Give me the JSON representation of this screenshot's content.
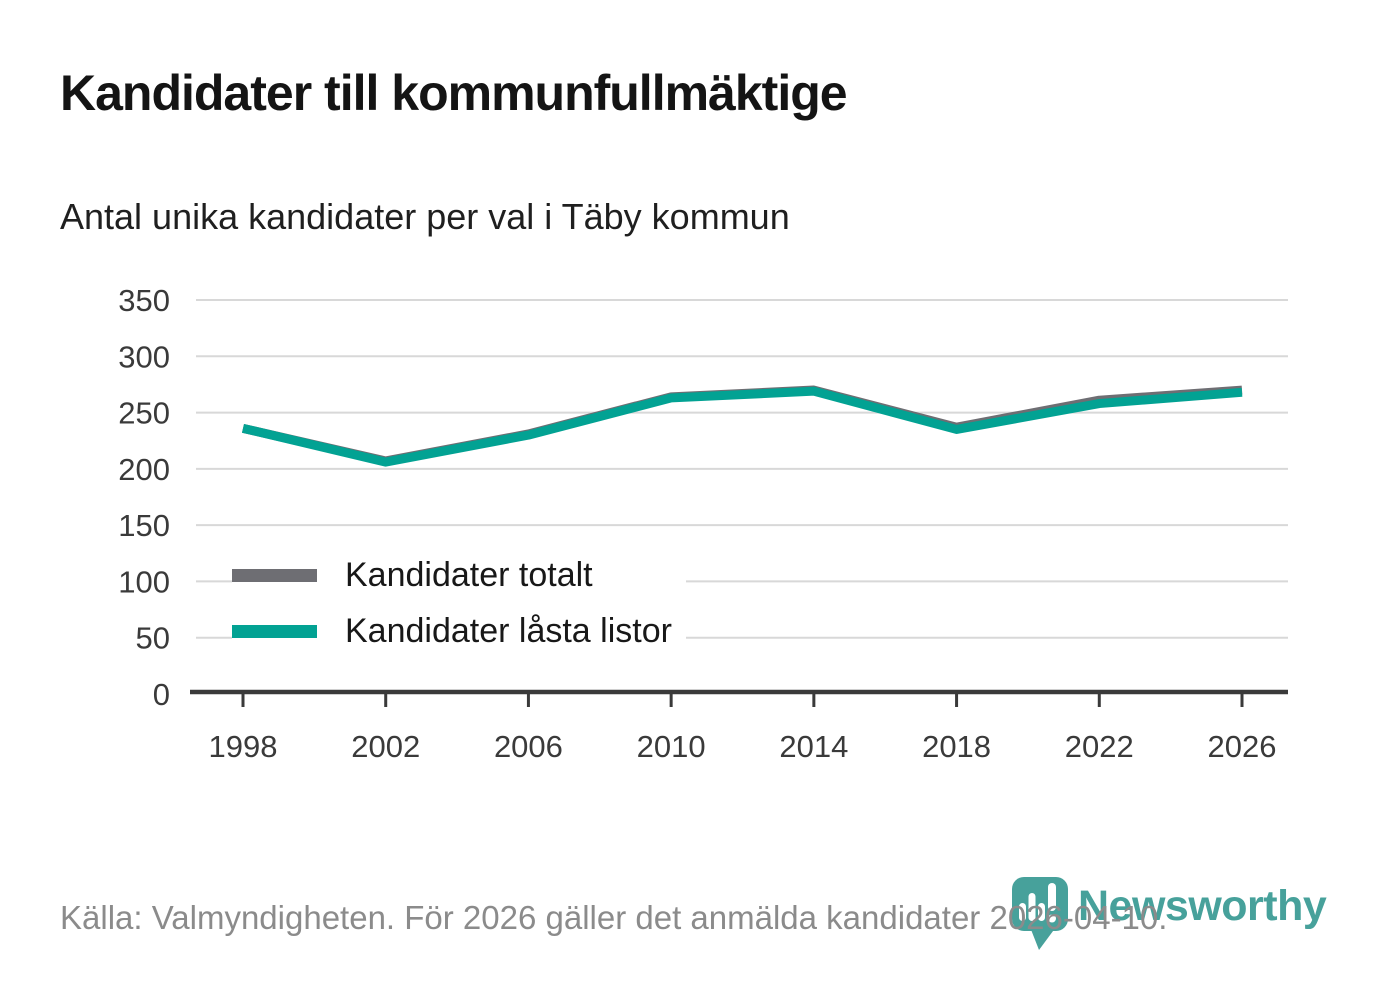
{
  "header": {
    "title": "Kandidater till kommunfullmäktige",
    "subtitle": "Antal unika kandidater per val i Täby kommun"
  },
  "chart_data": {
    "type": "line",
    "x": [
      1998,
      2002,
      2006,
      2010,
      2014,
      2018,
      2022,
      2026
    ],
    "series": [
      {
        "name": "Kandidater totalt",
        "color": "#6e6e73",
        "values": [
          236,
          207,
          231,
          264,
          270,
          237,
          261,
          270
        ]
      },
      {
        "name": "Kandidater låsta listor",
        "color": "#02a293",
        "values": [
          236,
          206,
          230,
          263,
          269,
          235,
          258,
          268
        ]
      }
    ],
    "ylim": [
      0,
      350
    ],
    "yticks": [
      0,
      50,
      100,
      150,
      200,
      250,
      300,
      350
    ],
    "grid": "horizontal",
    "legend_position": "inside-left-bottom",
    "axis_color": "#3a3a3a",
    "grid_color": "#d8d8d8"
  },
  "footer": {
    "source": "Källa: Valmyndigheten. För 2026 gäller det anmälda kandidater 2026-04-10.",
    "brand": "Newsworthy",
    "logo_color": "#47a19b"
  }
}
